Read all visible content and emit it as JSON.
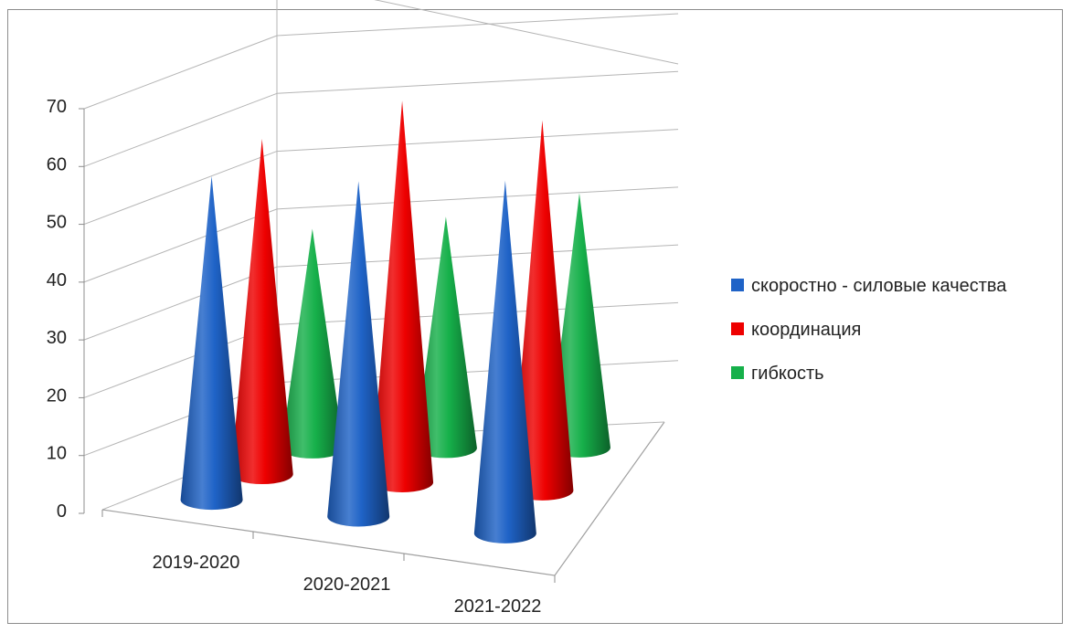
{
  "chart_data": {
    "type": "bar",
    "bar_shape": "cone-3d",
    "categories": [
      "2019-2020",
      "2020-2021",
      "2021-2022"
    ],
    "series": [
      {
        "name": "скоростно - силовые качества",
        "color": "#1f63c7",
        "values": [
          56,
          58,
          61
        ]
      },
      {
        "name": "координация",
        "color": "#ee0000",
        "values": [
          58,
          66,
          64
        ]
      },
      {
        "name": "гибкость",
        "color": "#16b04a",
        "values": [
          38,
          40,
          44
        ]
      }
    ],
    "yticks": [
      "0",
      "10",
      "20",
      "30",
      "40",
      "50",
      "60",
      "70"
    ],
    "ylim": [
      0,
      70
    ],
    "grid": true,
    "legend": "right"
  }
}
